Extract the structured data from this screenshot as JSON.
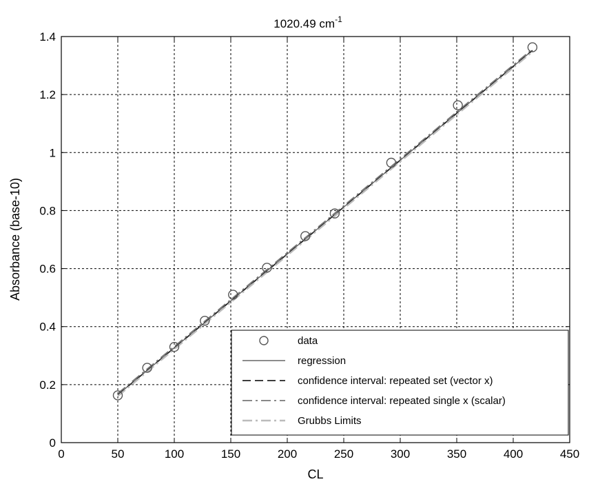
{
  "chart_data": {
    "type": "scatter",
    "title_main": "1020.49 cm",
    "title_sup": "-1",
    "xlabel": "CL",
    "ylabel": "Absorbance (base-10)",
    "xlim": [
      0,
      450
    ],
    "ylim": [
      0,
      1.4
    ],
    "xticks": [
      "0",
      "50",
      "100",
      "150",
      "200",
      "250",
      "300",
      "350",
      "400",
      "450"
    ],
    "yticks": [
      "0",
      "0.2",
      "0.4",
      "0.6",
      "0.8",
      "1",
      "1.2",
      "1.4"
    ],
    "grid": true,
    "legend_position": "bottom-right",
    "series": [
      {
        "name": "data",
        "style": "circle-markers",
        "color": "#555555",
        "x": [
          50,
          76,
          100,
          127,
          152,
          182,
          216,
          242,
          292,
          351,
          417
        ],
        "y": [
          0.163,
          0.258,
          0.33,
          0.42,
          0.51,
          0.603,
          0.712,
          0.79,
          0.965,
          1.163,
          1.363
        ]
      },
      {
        "name": "regression",
        "style": "solid",
        "color": "#666666",
        "x": [
          50,
          417
        ],
        "y": [
          0.165,
          1.352
        ]
      },
      {
        "name": "confidence interval: repeated set (vector x)",
        "style": "dash",
        "color": "#222222",
        "x": [
          50,
          417
        ],
        "y": [
          0.165,
          1.352
        ]
      },
      {
        "name": "confidence interval: repeated single x (scalar)",
        "style": "dashdot",
        "color": "#777777",
        "x": [
          50,
          417
        ],
        "y": [
          0.165,
          1.352
        ]
      },
      {
        "name": "Grubbs Limits",
        "style": "dashdot-light",
        "color": "#bbbbbb",
        "x": [
          50,
          417
        ],
        "y": [
          0.165,
          1.352
        ]
      }
    ]
  }
}
